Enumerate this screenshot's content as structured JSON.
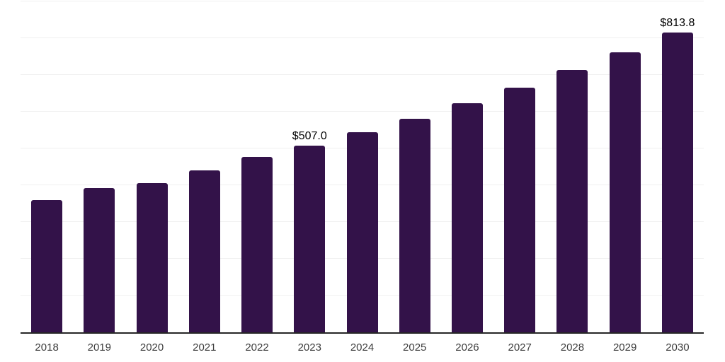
{
  "chart_data": {
    "type": "bar",
    "title": "",
    "xlabel": "",
    "ylabel": "",
    "categories": [
      "2018",
      "2019",
      "2020",
      "2021",
      "2022",
      "2023",
      "2024",
      "2025",
      "2026",
      "2027",
      "2028",
      "2029",
      "2030"
    ],
    "values": [
      359.4,
      392.3,
      405.2,
      439.4,
      476.5,
      507.0,
      542.5,
      580.5,
      621.1,
      664.6,
      711.1,
      760.9,
      813.8
    ],
    "data_labels": [
      {
        "category": "2023",
        "text": "$507.0"
      },
      {
        "category": "2030",
        "text": "$813.8"
      }
    ],
    "value_prefix": "$",
    "ylim": [
      0,
      900
    ],
    "gridline_step": 100,
    "grid": "horizontal-only",
    "legend": "none",
    "colors": {
      "bar": "#331249",
      "axis_line": "#262626",
      "gridline": "#f0f0f0",
      "tick_label": "#3d3d3d",
      "data_label": "#000000",
      "background": "#ffffff"
    }
  }
}
